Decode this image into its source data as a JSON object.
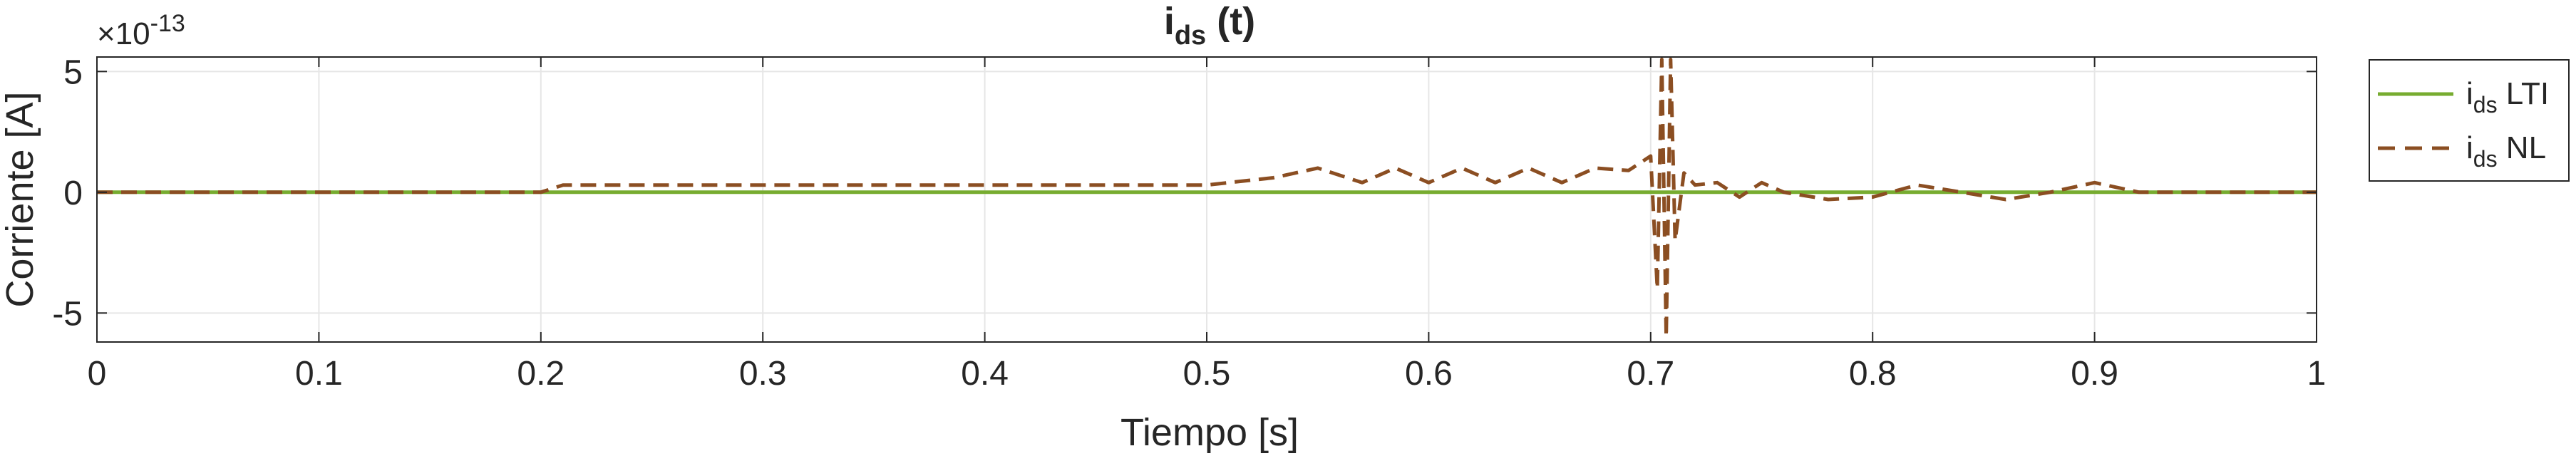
{
  "chart_data": {
    "type": "line",
    "title": {
      "main": "i",
      "sub": "ds",
      "rest": " (t)"
    },
    "xlabel": "Tiempo [s]",
    "ylabel": "Corriente [A]",
    "exponent": {
      "base": "×10",
      "power": "-13"
    },
    "xlim": [
      0,
      1
    ],
    "ylim": [
      -6.2,
      5.6
    ],
    "xticks": [
      {
        "value": 0,
        "label": "0"
      },
      {
        "value": 0.1,
        "label": "0.1"
      },
      {
        "value": 0.2,
        "label": "0.2"
      },
      {
        "value": 0.3,
        "label": "0.3"
      },
      {
        "value": 0.4,
        "label": "0.4"
      },
      {
        "value": 0.5,
        "label": "0.5"
      },
      {
        "value": 0.6,
        "label": "0.6"
      },
      {
        "value": 0.7,
        "label": "0.7"
      },
      {
        "value": 0.8,
        "label": "0.8"
      },
      {
        "value": 0.9,
        "label": "0.9"
      },
      {
        "value": 1,
        "label": "1"
      }
    ],
    "yticks": [
      {
        "value": 5,
        "label": "5"
      },
      {
        "value": 0,
        "label": "0"
      },
      {
        "value": -5,
        "label": "-5"
      }
    ],
    "grid": true,
    "legend_position": "outside-right",
    "series": [
      {
        "key": "lti",
        "label_main": "i",
        "label_sub": "ds",
        "label_rest": " LTI",
        "color": "#77AC30",
        "dash": "solid",
        "x": [
          0,
          1
        ],
        "y": [
          0,
          0
        ]
      },
      {
        "key": "nl",
        "label_main": "i",
        "label_sub": "ds",
        "label_rest": " NL",
        "color": "#8B4E22",
        "dash": "dashed",
        "x": [
          0,
          0.1,
          0.2,
          0.21,
          0.3,
          0.4,
          0.5,
          0.53,
          0.55,
          0.57,
          0.585,
          0.6,
          0.615,
          0.63,
          0.645,
          0.66,
          0.675,
          0.69,
          0.7,
          0.703,
          0.705,
          0.707,
          0.709,
          0.711,
          0.715,
          0.72,
          0.73,
          0.74,
          0.75,
          0.76,
          0.78,
          0.8,
          0.82,
          0.84,
          0.86,
          0.88,
          0.9,
          0.92,
          0.95,
          1
        ],
        "y": [
          0,
          0,
          0,
          0.3,
          0.3,
          0.3,
          0.3,
          0.6,
          1.0,
          0.4,
          1.0,
          0.4,
          1.0,
          0.4,
          1.0,
          0.4,
          1.0,
          0.9,
          1.5,
          -4.0,
          5.5,
          -6.0,
          5.5,
          -2.0,
          0.8,
          0.3,
          0.4,
          -0.2,
          0.4,
          0.0,
          -0.3,
          -0.2,
          0.3,
          0.0,
          -0.3,
          0.0,
          0.4,
          0.0,
          0.0,
          0.0
        ]
      }
    ]
  }
}
